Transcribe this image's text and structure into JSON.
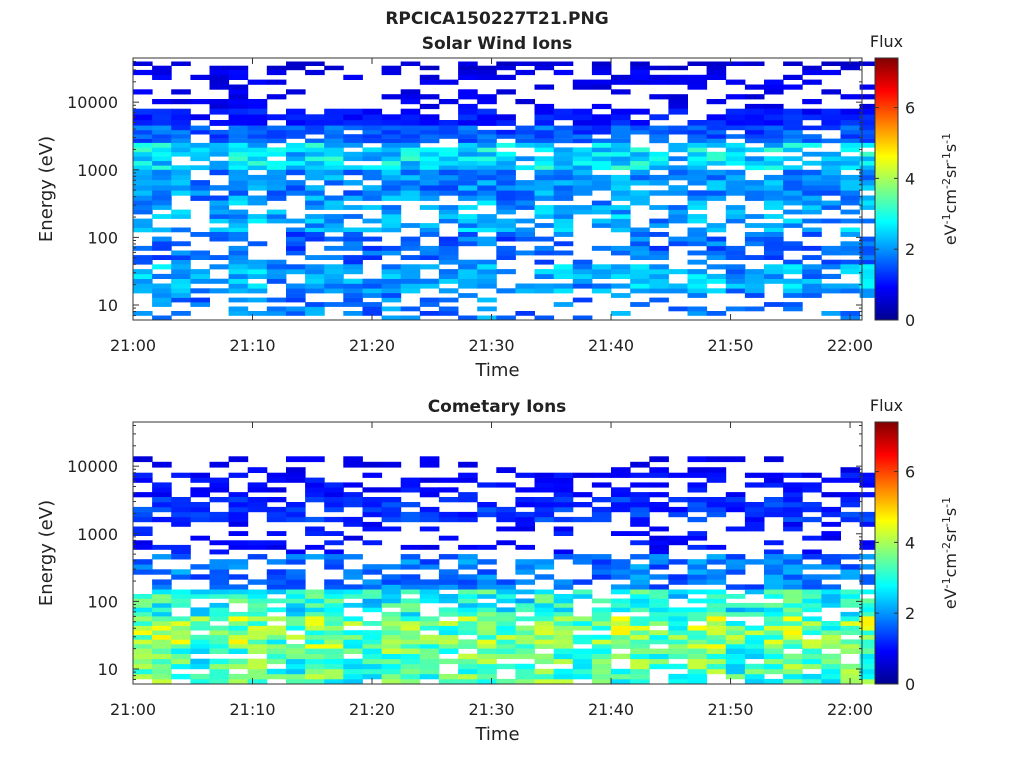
{
  "figure": {
    "title": "RPCICA150227T21.PNG"
  },
  "colors": {
    "colormap": [
      "#00008f",
      "#0000ff",
      "#0080ff",
      "#00ffff",
      "#80ff80",
      "#ffff00",
      "#ff8000",
      "#ff0000",
      "#800000"
    ]
  },
  "chart_data": [
    {
      "type": "heatmap",
      "title": "Solar Wind Ions",
      "xlabel": "Time",
      "ylabel": "Energy (eV)",
      "x_range": [
        "21:00",
        "22:01"
      ],
      "x_ticks": [
        "21:00",
        "21:10",
        "21:20",
        "21:30",
        "21:40",
        "21:50",
        "22:00"
      ],
      "y_scale": "log",
      "ylim": [
        6,
        45000
      ],
      "y_ticks": [
        "10",
        "100",
        "1000",
        "10000"
      ],
      "colorbar": {
        "label": "Flux",
        "unit": "eV-1cm-2sr-1s-1",
        "range": [
          0,
          7.4
        ],
        "ticks": [
          "0",
          "2",
          "4",
          "6"
        ]
      },
      "bands": [
        {
          "energy_range": [
            30000,
            40000
          ],
          "flux": 0.6,
          "coverage": 0.6
        },
        {
          "energy_range": [
            8000,
            30000
          ],
          "flux": 0.8,
          "coverage": 0.35
        },
        {
          "energy_range": [
            4500,
            8000
          ],
          "flux": 1.1,
          "coverage": 0.85
        },
        {
          "energy_range": [
            2500,
            4500
          ],
          "flux": 1.6,
          "coverage": 0.95
        },
        {
          "energy_range": [
            1000,
            2500
          ],
          "flux": 2.6,
          "coverage": 0.9
        },
        {
          "energy_range": [
            350,
            1000
          ],
          "flux": 2.0,
          "coverage": 0.95
        },
        {
          "energy_range": [
            120,
            350
          ],
          "flux": 2.2,
          "coverage": 0.7
        },
        {
          "energy_range": [
            40,
            120
          ],
          "flux": 1.7,
          "coverage": 0.55
        },
        {
          "energy_range": [
            15,
            40
          ],
          "flux": 2.2,
          "coverage": 0.85
        },
        {
          "energy_range": [
            6,
            15
          ],
          "flux": 1.9,
          "coverage": 0.35
        }
      ]
    },
    {
      "type": "heatmap",
      "title": "Cometary Ions",
      "xlabel": "Time",
      "ylabel": "Energy (eV)",
      "x_range": [
        "21:00",
        "22:01"
      ],
      "x_ticks": [
        "21:00",
        "21:10",
        "21:20",
        "21:30",
        "21:40",
        "21:50",
        "22:00"
      ],
      "y_scale": "log",
      "ylim": [
        6,
        45000
      ],
      "y_ticks": [
        "10",
        "100",
        "1000",
        "10000"
      ],
      "colorbar": {
        "label": "Flux",
        "unit": "eV-1cm-2sr-1s-1",
        "range": [
          0,
          7.4
        ],
        "ticks": [
          "0",
          "2",
          "4",
          "6"
        ]
      },
      "bands": [
        {
          "energy_range": [
            8000,
            14000
          ],
          "flux": 0.8,
          "coverage": 0.3
        },
        {
          "energy_range": [
            3500,
            8000
          ],
          "flux": 1.0,
          "coverage": 0.55
        },
        {
          "energy_range": [
            1500,
            3500
          ],
          "flux": 1.3,
          "coverage": 0.8
        },
        {
          "energy_range": [
            500,
            1500
          ],
          "flux": 1.0,
          "coverage": 0.25
        },
        {
          "energy_range": [
            150,
            500
          ],
          "flux": 1.8,
          "coverage": 0.6
        },
        {
          "energy_range": [
            60,
            150
          ],
          "flux": 3.0,
          "coverage": 0.85
        },
        {
          "energy_range": [
            20,
            60
          ],
          "flux": 3.8,
          "coverage": 0.95
        },
        {
          "energy_range": [
            6,
            20
          ],
          "flux": 3.4,
          "coverage": 0.9
        }
      ]
    }
  ]
}
